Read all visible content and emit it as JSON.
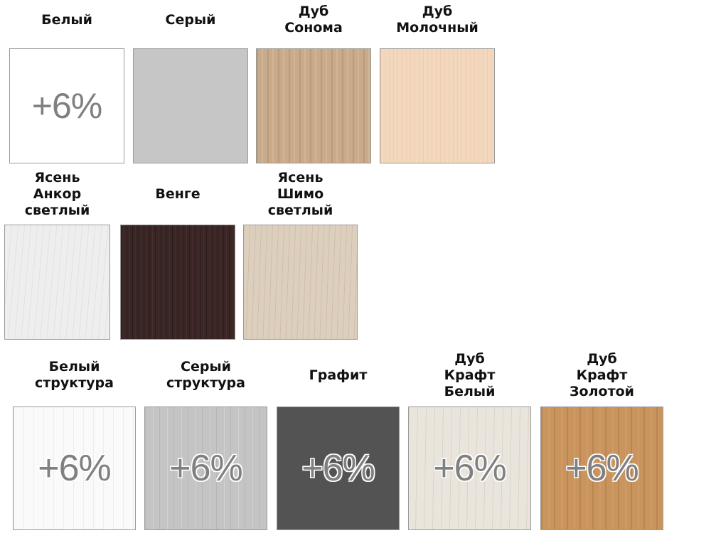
{
  "badge_text": "+6%",
  "rows": [
    [
      {
        "lines": [
          "Белый"
        ],
        "surcharge": true,
        "color": "#ffffff"
      },
      {
        "lines": [
          "Серый"
        ],
        "surcharge": false,
        "color": "#c6c6c6"
      },
      {
        "lines": [
          "Дуб",
          "Сонома"
        ],
        "surcharge": false,
        "color": "#c9ab8a"
      },
      {
        "lines": [
          "Дуб",
          "Молочный"
        ],
        "surcharge": false,
        "color": "#f3d8bd"
      }
    ],
    [
      {
        "lines": [
          "Ясень",
          "Анкор",
          "светлый"
        ],
        "surcharge": false,
        "color": "#eeeeee"
      },
      {
        "lines": [
          "Венге"
        ],
        "surcharge": false,
        "color": "#3a2725"
      },
      {
        "lines": [
          "Ясень",
          "Шимо",
          "светлый"
        ],
        "surcharge": false,
        "color": "#ddcfbd"
      }
    ],
    [
      {
        "lines": [
          "Белый",
          "структура"
        ],
        "surcharge": true,
        "color": "#fafafa"
      },
      {
        "lines": [
          "Серый",
          "структура"
        ],
        "surcharge": true,
        "color": "#c4c4c4"
      },
      {
        "lines": [
          "Графит"
        ],
        "surcharge": true,
        "color": "#535353"
      },
      {
        "lines": [
          "Дуб",
          "Крафт",
          "Белый"
        ],
        "surcharge": true,
        "color": "#e9e5dc"
      },
      {
        "lines": [
          "Дуб",
          "Крафт",
          "Золотой"
        ],
        "surcharge": true,
        "color": "#c9945e"
      }
    ]
  ]
}
